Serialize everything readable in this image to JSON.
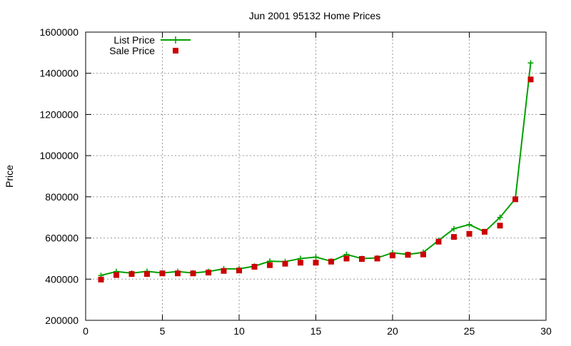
{
  "chart_data": {
    "type": "line",
    "title": "Jun 2001 95132 Home Prices",
    "xlabel": "",
    "ylabel": "Price",
    "xlim": [
      0,
      30
    ],
    "ylim": [
      200000,
      1600000
    ],
    "xticks": [
      0,
      5,
      10,
      15,
      20,
      25,
      30
    ],
    "yticks": [
      200000,
      400000,
      600000,
      800000,
      1000000,
      1200000,
      1400000,
      1600000
    ],
    "grid": true,
    "legend_position": "top-left",
    "series": [
      {
        "name": "List Price",
        "style": "line-plus",
        "color": "#00a000",
        "x": [
          1,
          2,
          3,
          4,
          5,
          6,
          7,
          8,
          9,
          10,
          11,
          12,
          13,
          14,
          15,
          16,
          17,
          18,
          19,
          20,
          21,
          22,
          23,
          24,
          25,
          26,
          27,
          28,
          29
        ],
        "values": [
          418000,
          437000,
          429000,
          438000,
          430000,
          437000,
          430000,
          437000,
          450000,
          450000,
          463000,
          487000,
          485000,
          500000,
          507000,
          487000,
          520000,
          500000,
          503000,
          528000,
          520000,
          530000,
          588000,
          645000,
          665000,
          630000,
          700000,
          790000,
          1450000
        ]
      },
      {
        "name": "Sale Price",
        "style": "square",
        "color": "#cc0000",
        "x": [
          1,
          2,
          3,
          4,
          5,
          6,
          7,
          8,
          9,
          10,
          11,
          12,
          13,
          14,
          15,
          16,
          17,
          18,
          19,
          20,
          21,
          22,
          23,
          24,
          25,
          26,
          27,
          28,
          29
        ],
        "values": [
          398000,
          420000,
          425000,
          425000,
          428000,
          428000,
          428000,
          432000,
          440000,
          442000,
          460000,
          468000,
          475000,
          480000,
          480000,
          485000,
          500000,
          498000,
          500000,
          515000,
          518000,
          520000,
          582000,
          605000,
          620000,
          630000,
          660000,
          788000,
          1370000
        ]
      }
    ]
  }
}
